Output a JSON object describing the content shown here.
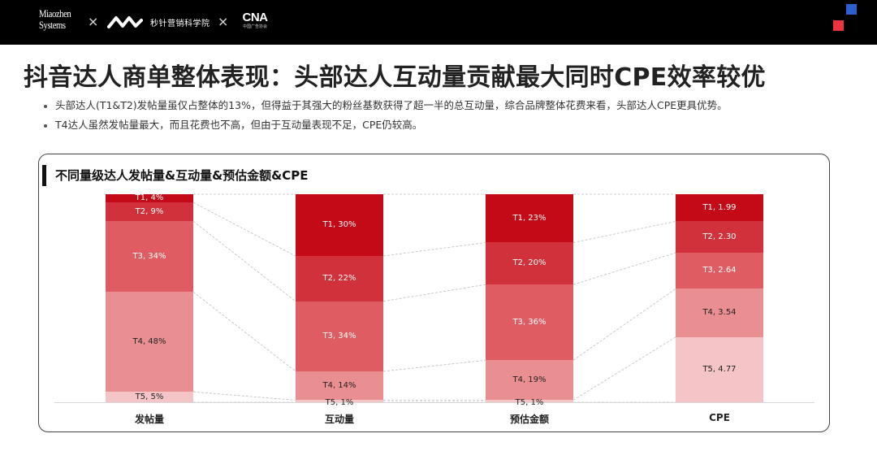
{
  "header": {
    "logos": {
      "miaozhen_line1": "Miaozhen",
      "miaozhen_line2": "Systems",
      "separator": "×",
      "academy_name": "秒针营销科学院",
      "cna_mark": "CNA",
      "cna_sub": "中国广告协会"
    },
    "accent_colors": {
      "blue": "#2d5fcd",
      "red": "#ee3340"
    }
  },
  "page": {
    "title": "抖音达人商单整体表现：头部达人互动量贡献最大同时CPE效率较优",
    "bullets": [
      "头部达人(T1&T2)发帖量虽仅占整体的13%，但得益于其强大的粉丝基数获得了超一半的总互动量，综合品牌整体花费来看，头部达人CPE更具优势。",
      "T4达人虽然发帖量最大，而且花费也不高，但由于互动量表现不足，CPE仍较高。"
    ]
  },
  "card": {
    "title": "不同量级达人发帖量&互动量&预估金额&CPE"
  },
  "colors": {
    "T1": "#c40a16",
    "T2": "#d1313a",
    "T3": "#df5d62",
    "T4": "#ea8f91",
    "T5": "#f4c4c6"
  },
  "chart_data": {
    "type": "bar",
    "stacked": true,
    "title": "不同量级达人发帖量&互动量&预估金额&CPE",
    "categories": [
      "发帖量",
      "互动量",
      "预估金额",
      "CPE"
    ],
    "series": [
      {
        "name": "T1",
        "values": [
          4,
          30,
          23,
          1.99
        ],
        "labels": [
          "T1, 4%",
          "T1, 30%",
          "T1, 23%",
          "T1, 1.99"
        ]
      },
      {
        "name": "T2",
        "values": [
          9,
          22,
          20,
          2.3
        ],
        "labels": [
          "T2, 9%",
          "T2, 22%",
          "T2, 20%",
          "T2, 2.30"
        ]
      },
      {
        "name": "T3",
        "values": [
          34,
          34,
          36,
          2.64
        ],
        "labels": [
          "T3, 34%",
          "T3, 34%",
          "T3, 36%",
          "T3, 2.64"
        ]
      },
      {
        "name": "T4",
        "values": [
          48,
          14,
          19,
          3.54
        ],
        "labels": [
          "T4, 48%",
          "T4, 14%",
          "T4, 19%",
          "T4, 3.54"
        ]
      },
      {
        "name": "T5",
        "values": [
          5,
          1,
          1,
          4.77
        ],
        "labels": [
          "T5, 5%",
          "T5, 1%",
          "T5, 1%",
          "T5, 4.77"
        ]
      }
    ],
    "units": [
      "%",
      "%",
      "%",
      "CPE"
    ],
    "stack_order": "T1 on top, T5 at bottom",
    "connector_lines": "dashed gray lines linking segment boundaries between adjacent columns",
    "grid": false,
    "legend": "none (labels inside segments)",
    "xlabel": "",
    "ylabel": ""
  }
}
